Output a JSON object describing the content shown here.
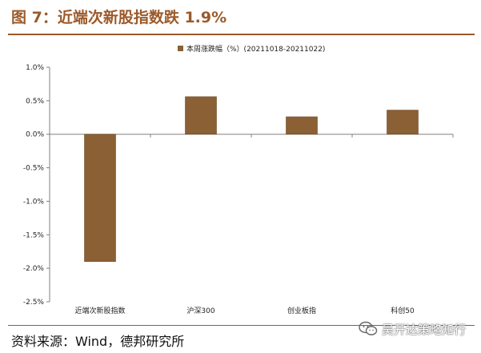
{
  "figure": {
    "title": "图 7：近端次新股指数跌 1.9%",
    "source": "资料来源：Wind，德邦研究所",
    "watermark": "吴开达策略知行"
  },
  "colors": {
    "accent": "#9b5a2a",
    "bar": "#8b6035",
    "bar_edge": "#6e4a26",
    "axis": "#808080",
    "text": "#222222"
  },
  "chart_data": {
    "type": "bar",
    "categories": [
      "近端次新股指数",
      "沪深300",
      "创业板指",
      "科创50"
    ],
    "series": [
      {
        "name": "本周涨跌幅（%）(20211018-20211022)",
        "values": [
          -1.9,
          0.56,
          0.26,
          0.36
        ]
      }
    ],
    "ylim": [
      -2.5,
      1.0
    ],
    "yticks": [
      1.0,
      0.5,
      0.0,
      -0.5,
      -1.0,
      -1.5,
      -2.0,
      -2.5
    ],
    "ytick_labels": [
      "1.0%",
      "0.5%",
      "0.0%",
      "-0.5%",
      "-1.0%",
      "-1.5%",
      "-2.0%",
      "-2.5%"
    ],
    "legend_position": "top",
    "grid": false
  }
}
